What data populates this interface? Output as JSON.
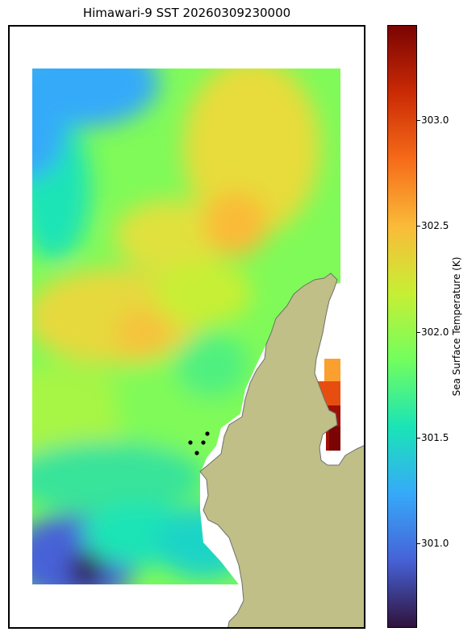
{
  "title": "Himawari-9 SST 20260309230000",
  "colorbar": {
    "label": "Sea Surface Temperature (K)",
    "min": 300.6,
    "max": 303.45,
    "ticks": [
      "301.0",
      "301.5",
      "302.0",
      "302.5",
      "303.0"
    ],
    "colors": [
      "#30123b",
      "#4662d7",
      "#36aaf9",
      "#1ae4b6",
      "#72fe5e",
      "#c7ef34",
      "#fabb39",
      "#f66b19",
      "#ca2a04",
      "#7a0403"
    ]
  },
  "map": {
    "type": "heatmap",
    "land_color": "#bfbf87",
    "coast_color": "#6f6f6f",
    "marker_color": "#000000",
    "marker_count": 4
  }
}
